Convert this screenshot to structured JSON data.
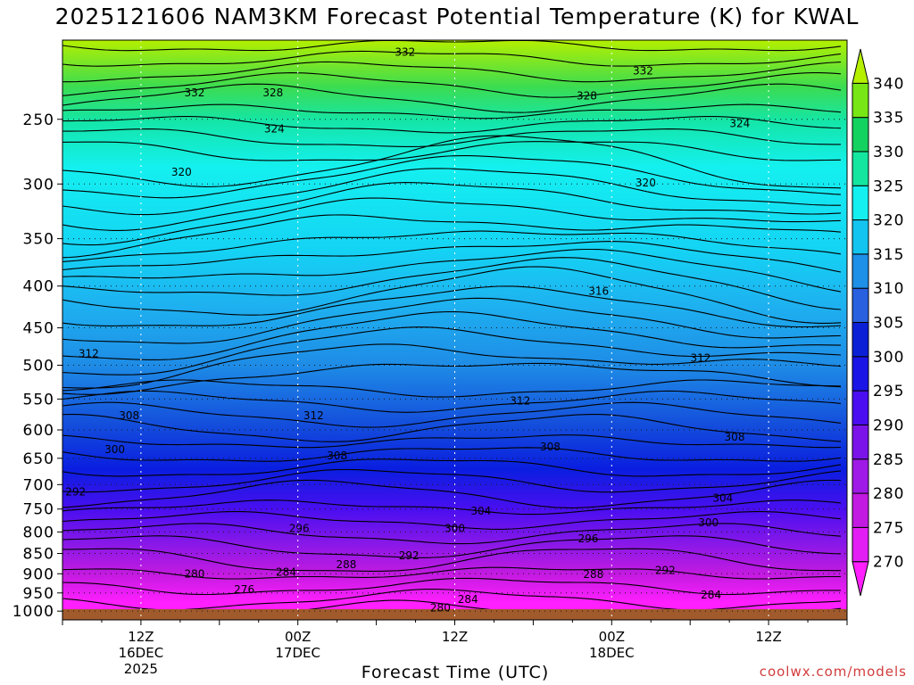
{
  "chart_data": {
    "type": "contour",
    "title": "2025121606 NAM3KM Forecast Potential Temperature (K) for KWAL",
    "xlabel": "Forecast Time (UTC)",
    "ylabel": "",
    "credit": "coolwx.com/models",
    "y_axis": {
      "unit": "hPa",
      "ticks": [
        250,
        300,
        350,
        400,
        450,
        500,
        550,
        600,
        650,
        700,
        750,
        800,
        850,
        900,
        950,
        1000
      ],
      "range": [
        1025,
        200
      ]
    },
    "x_axis": {
      "ticks": [
        {
          "hour": 6,
          "line1": "12Z",
          "line2": "16DEC",
          "line3": "2025"
        },
        {
          "hour": 18,
          "line1": "00Z",
          "line2": "17DEC",
          "line3": ""
        },
        {
          "hour": 30,
          "line1": "12Z",
          "line2": "",
          "line3": ""
        },
        {
          "hour": 42,
          "line1": "00Z",
          "line2": "18DEC",
          "line3": ""
        },
        {
          "hour": 54,
          "line1": "12Z",
          "line2": "",
          "line3": ""
        }
      ],
      "range_hours": [
        0,
        60
      ]
    },
    "colorbar": {
      "levels": [
        270,
        275,
        280,
        285,
        290,
        295,
        300,
        305,
        310,
        315,
        320,
        325,
        330,
        335,
        340
      ],
      "colors": [
        "#ff1fff",
        "#e31ef5",
        "#c21ae0",
        "#9f1ae6",
        "#7a14e8",
        "#4a0ef0",
        "#1b14e6",
        "#0b1fd6",
        "#2860e0",
        "#1e90e8",
        "#14c4f0",
        "#14f0f0",
        "#14e6a0",
        "#14d260",
        "#78e614",
        "#b4f000"
      ]
    },
    "contour_labels": [
      {
        "value": "332",
        "hour": 26.2,
        "p": 207
      },
      {
        "value": "332",
        "hour": 10.1,
        "p": 232
      },
      {
        "value": "328",
        "hour": 16.1,
        "p": 232
      },
      {
        "value": "332",
        "hour": 44.4,
        "p": 218
      },
      {
        "value": "328",
        "hour": 40.1,
        "p": 234
      },
      {
        "value": "324",
        "hour": 16.2,
        "p": 257
      },
      {
        "value": "324",
        "hour": 51.8,
        "p": 253
      },
      {
        "value": "320",
        "hour": 9.1,
        "p": 290
      },
      {
        "value": "320",
        "hour": 44.6,
        "p": 299
      },
      {
        "value": "316",
        "hour": 41.0,
        "p": 406
      },
      {
        "value": "312",
        "hour": 2.0,
        "p": 484
      },
      {
        "value": "312",
        "hour": 48.8,
        "p": 490
      },
      {
        "value": "312",
        "hour": 35.0,
        "p": 553
      },
      {
        "value": "312",
        "hour": 19.2,
        "p": 576
      },
      {
        "value": "308",
        "hour": 5.1,
        "p": 576
      },
      {
        "value": "308",
        "hour": 37.3,
        "p": 629
      },
      {
        "value": "308",
        "hour": 51.4,
        "p": 612
      },
      {
        "value": "308",
        "hour": 21.0,
        "p": 645
      },
      {
        "value": "300",
        "hour": 4.0,
        "p": 634
      },
      {
        "value": "292",
        "hour": 1.0,
        "p": 715
      },
      {
        "value": "304",
        "hour": 32.0,
        "p": 754
      },
      {
        "value": "304",
        "hour": 50.5,
        "p": 727
      },
      {
        "value": "296",
        "hour": 18.1,
        "p": 792
      },
      {
        "value": "300",
        "hour": 30.0,
        "p": 792
      },
      {
        "value": "300",
        "hour": 49.4,
        "p": 779
      },
      {
        "value": "296",
        "hour": 40.2,
        "p": 815
      },
      {
        "value": "292",
        "hour": 26.5,
        "p": 855
      },
      {
        "value": "288",
        "hour": 21.7,
        "p": 877
      },
      {
        "value": "284",
        "hour": 17.1,
        "p": 896
      },
      {
        "value": "280",
        "hour": 10.1,
        "p": 900
      },
      {
        "value": "292",
        "hour": 46.1,
        "p": 891
      },
      {
        "value": "288",
        "hour": 40.6,
        "p": 902
      },
      {
        "value": "276",
        "hour": 13.9,
        "p": 941
      },
      {
        "value": "284",
        "hour": 49.6,
        "p": 955
      },
      {
        "value": "284",
        "hour": 31.0,
        "p": 968
      },
      {
        "value": "280",
        "hour": 28.9,
        "p": 991
      }
    ]
  }
}
